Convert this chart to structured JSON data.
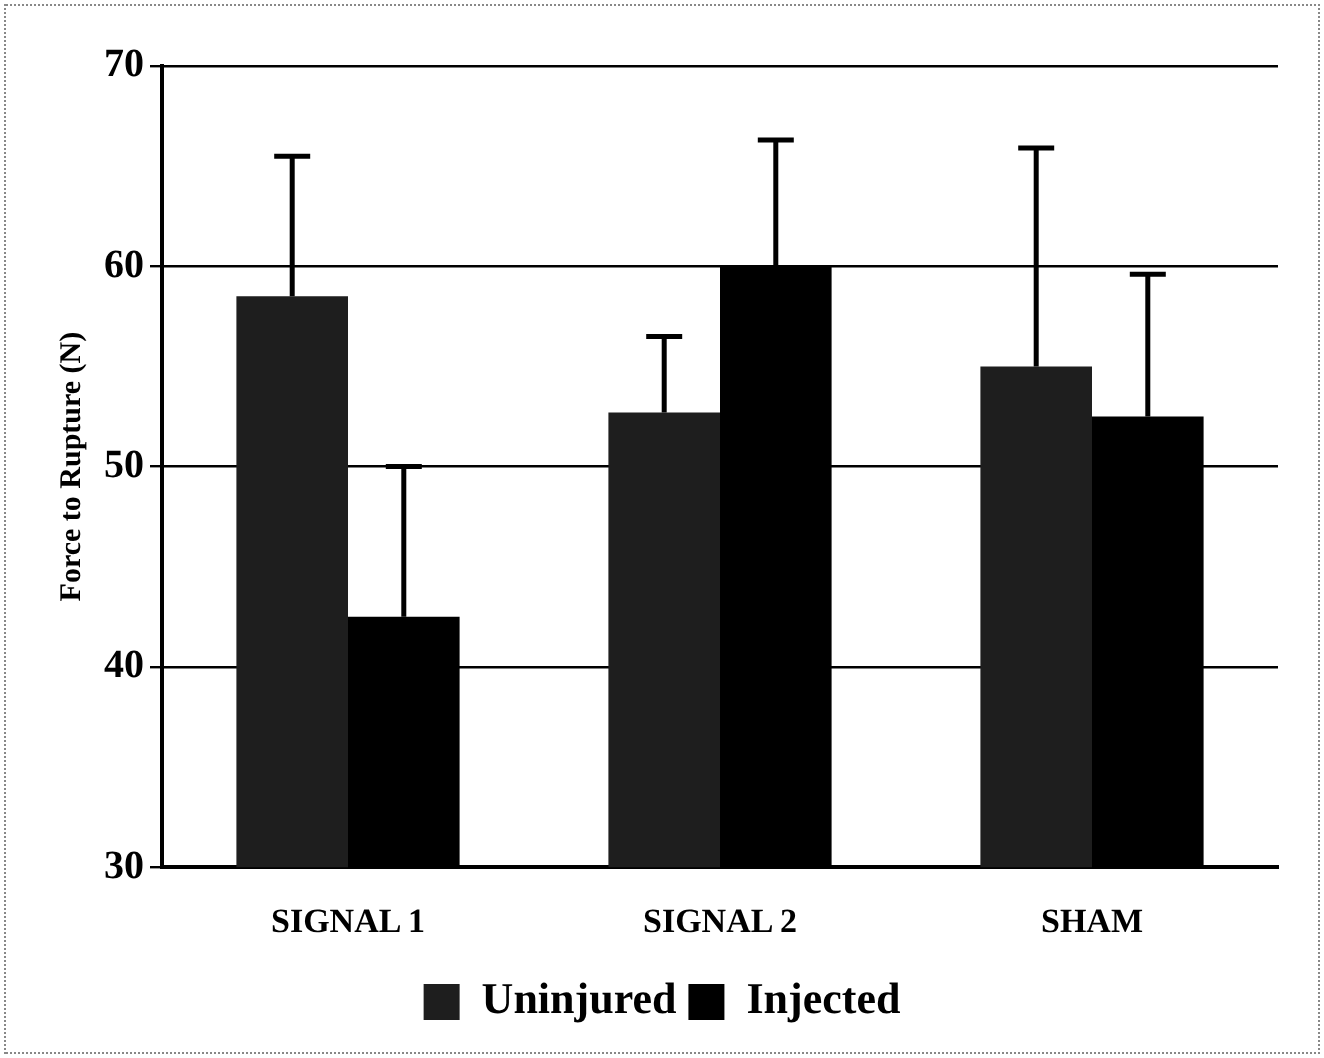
{
  "chart_data": {
    "type": "bar",
    "ylabel": "Force to Rupture (N)",
    "categories": [
      "SIGNAL 1",
      "SIGNAL 2",
      "SHAM"
    ],
    "series": [
      {
        "name": "Uninjured",
        "color": "#1e1e1e",
        "values": [
          58.5,
          52.7,
          55
        ],
        "errors": [
          [
            58.5,
            65.5
          ],
          [
            52.7,
            56.5
          ],
          [
            55,
            65.9
          ]
        ]
      },
      {
        "name": "Injected",
        "color": "#000000",
        "values": [
          42.5,
          60,
          52.5
        ],
        "errors": [
          [
            42.5,
            50
          ],
          [
            60,
            66.3
          ],
          [
            52.5,
            59.6
          ]
        ]
      }
    ],
    "ylim": [
      30,
      70
    ],
    "yticks": [
      30,
      40,
      50,
      60,
      70
    ],
    "grid": "y",
    "legend": "bottom"
  }
}
